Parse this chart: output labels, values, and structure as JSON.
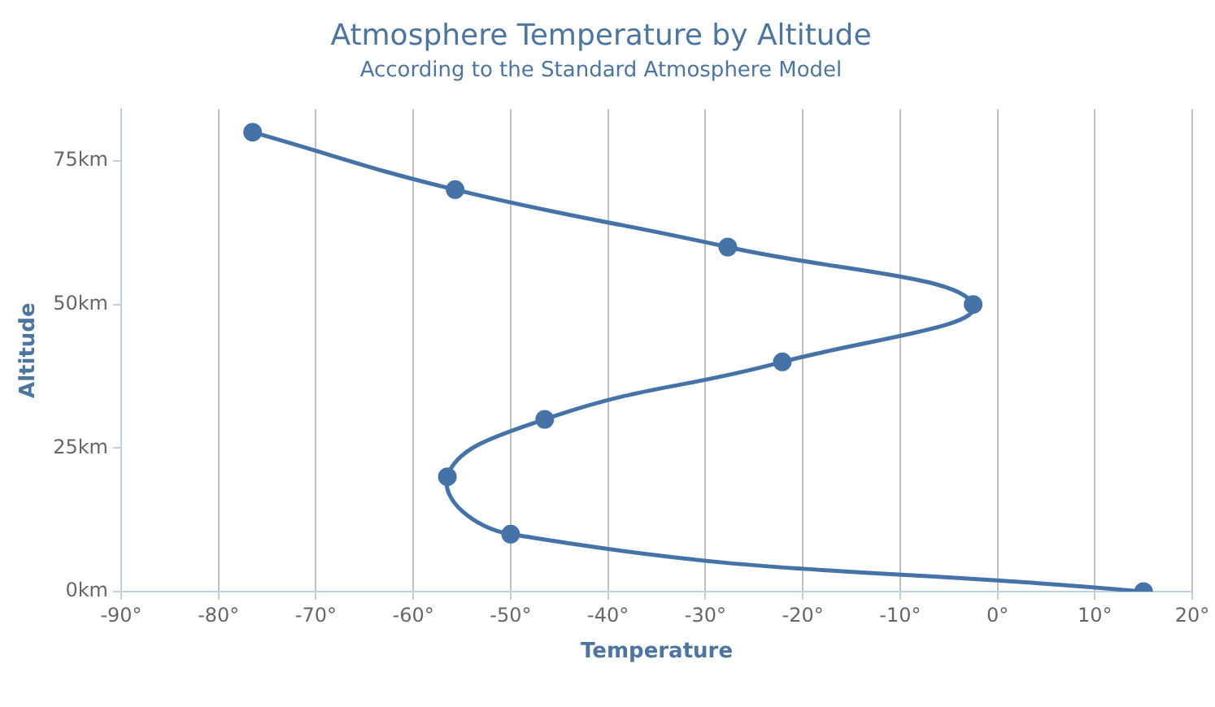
{
  "chart_data": {
    "type": "line",
    "title": "Atmosphere Temperature by Altitude",
    "subtitle": "According to the Standard Atmosphere Model",
    "xlabel": "Temperature",
    "ylabel": "Altitude",
    "x": [
      15,
      -50,
      -56.5,
      -46.5,
      -22.1,
      -2.5,
      -27.7,
      -55.7,
      -76.5
    ],
    "values": [
      0,
      10,
      20,
      30,
      40,
      50,
      60,
      70,
      80
    ],
    "color": "#4572a7",
    "xlim": [
      -90,
      20
    ],
    "xticks": [
      {
        "value": -90,
        "label": "-90°"
      },
      {
        "value": -80,
        "label": "-80°"
      },
      {
        "value": -70,
        "label": "-70°"
      },
      {
        "value": -60,
        "label": "-60°"
      },
      {
        "value": -50,
        "label": "-50°"
      },
      {
        "value": -40,
        "label": "-40°"
      },
      {
        "value": -30,
        "label": "-30°"
      },
      {
        "value": -20,
        "label": "-20°"
      },
      {
        "value": -10,
        "label": "-10°"
      },
      {
        "value": 0,
        "label": "0°"
      },
      {
        "value": 10,
        "label": "10°"
      },
      {
        "value": 20,
        "label": "20°"
      }
    ],
    "ylim": [
      0,
      84
    ],
    "yticks": [
      {
        "value": 0,
        "label": "0km"
      },
      {
        "value": 25,
        "label": "25km"
      },
      {
        "value": 50,
        "label": "50km"
      },
      {
        "value": 75,
        "label": "75km"
      }
    ],
    "grid": "x",
    "legend": false,
    "marker": "circle",
    "line_style": "solid"
  }
}
